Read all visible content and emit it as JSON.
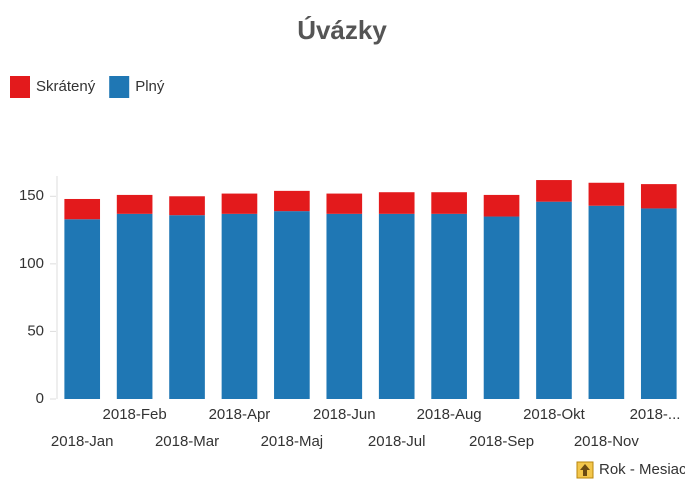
{
  "chart_data": {
    "type": "stacked_bar",
    "title": "Úvázky",
    "categories": [
      "2018-Jan",
      "2018-Feb",
      "2018-Mar",
      "2018-Apr",
      "2018-Maj",
      "2018-Jun",
      "2018-Jul",
      "2018-Aug",
      "2018-Sep",
      "2018-Okt",
      "2018-Nov",
      "2018-..."
    ],
    "series": [
      {
        "name": "Plný",
        "color": "#1f77b4",
        "values": [
          133,
          137,
          136,
          137,
          139,
          137,
          137,
          137,
          135,
          146,
          143,
          141
        ]
      },
      {
        "name": "Skrátený",
        "color": "#e31a1c",
        "values": [
          15,
          14,
          14,
          15,
          15,
          15,
          16,
          16,
          16,
          16,
          17,
          18
        ]
      }
    ],
    "legend_order": [
      1,
      0
    ],
    "x_label": "Rok - Mesiac",
    "ylim": [
      0,
      165
    ],
    "yticks": [
      0,
      50,
      100,
      150
    ],
    "grid": false
  }
}
